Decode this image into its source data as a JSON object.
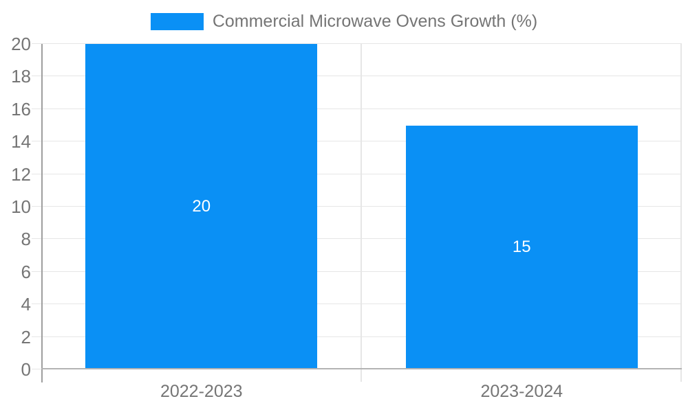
{
  "chart_data": {
    "type": "bar",
    "title": "Commercial Microwave Ovens Growth (%)",
    "categories": [
      "2022-2023",
      "2023-2024"
    ],
    "values": [
      20,
      15
    ],
    "value_labels": [
      "20",
      "15"
    ],
    "y_ticks": [
      0,
      2,
      4,
      6,
      8,
      10,
      12,
      14,
      16,
      18,
      20
    ],
    "ylim": [
      0,
      20
    ],
    "xlabel": "",
    "ylabel": "",
    "grid": true,
    "bar_width_fraction": 0.725,
    "legend": {
      "position": "top",
      "label": "Commercial Microwave Ovens Growth (%)"
    },
    "colors": {
      "bar": "#0a90f5",
      "label_text": "#ffffff",
      "axis_text": "#757575",
      "gridline": "#e6e6e6",
      "baseline": "#b3b3b3",
      "axis_line": "#9e9e9e",
      "background": "#ffffff"
    }
  }
}
